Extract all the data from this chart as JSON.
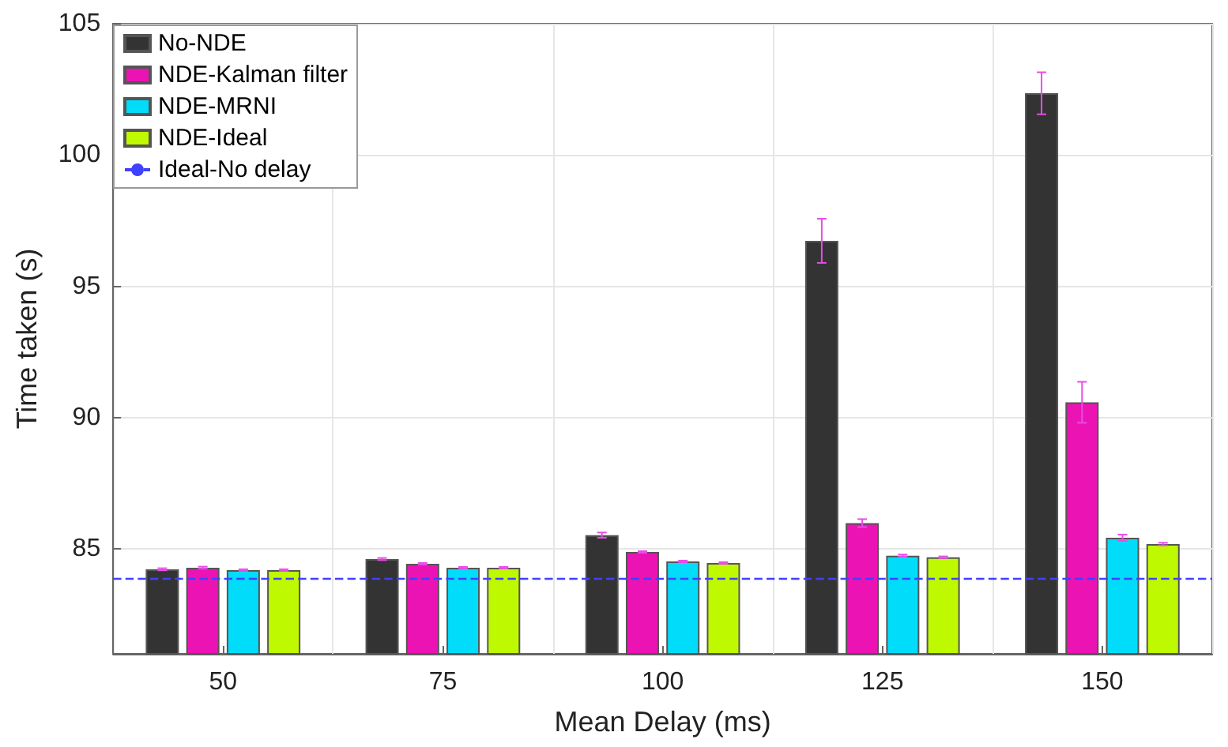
{
  "chart_data": {
    "type": "bar",
    "xlabel": "Mean Delay (ms)",
    "ylabel": "Time taken (s)",
    "categories": [
      "50",
      "75",
      "100",
      "125",
      "150"
    ],
    "series": [
      {
        "name": "No-NDE",
        "color": "#333333",
        "values": [
          84.22,
          84.61,
          85.52,
          96.73,
          102.35
        ],
        "errors": [
          0.04,
          0.04,
          0.1,
          0.84,
          0.8
        ]
      },
      {
        "name": "NDE-Kalman filter",
        "color": "#ec13b4",
        "values": [
          84.28,
          84.43,
          84.88,
          85.98,
          90.58
        ],
        "errors": [
          0.04,
          0.03,
          0.03,
          0.15,
          0.78
        ]
      },
      {
        "name": "NDE-MRNI",
        "color": "#00dcfa",
        "values": [
          84.19,
          84.28,
          84.52,
          84.74,
          85.42
        ],
        "errors": [
          0.03,
          0.03,
          0.03,
          0.04,
          0.12
        ]
      },
      {
        "name": "NDE-Ideal",
        "color": "#bff900",
        "values": [
          84.19,
          84.28,
          84.46,
          84.68,
          85.18
        ],
        "errors": [
          0.03,
          0.03,
          0.03,
          0.03,
          0.05
        ]
      }
    ],
    "ref_lines": [
      {
        "axis": "y",
        "value": 83.88,
        "label": "Ideal-No delay",
        "color": "#4040ff",
        "line_style": "dashed"
      }
    ],
    "ylim": [
      81,
      105
    ],
    "yticks": [
      85,
      90,
      95,
      100,
      105
    ],
    "grid": true,
    "legend": "top left"
  }
}
